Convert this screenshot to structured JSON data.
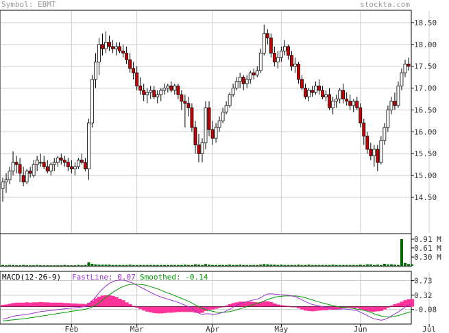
{
  "header": {
    "symbol": "Symbol: EBMT",
    "brand": "stockta.com"
  },
  "colors": {
    "up_candle_fill": "#ffffff",
    "down_candle_fill": "#cc0000",
    "volume": "#006600",
    "macd_histogram": "#ff3399",
    "fast_line": "#9933cc",
    "smooth_line": "#009900",
    "grid": "#cccccc",
    "axis_text": "#333333",
    "header_text": "#999999"
  },
  "chart_data": [
    {
      "type": "candlestick",
      "ylim": [
        13.7,
        18.75
      ],
      "y_ticks": [
        "18.50",
        "18.00",
        "17.50",
        "17.00",
        "16.50",
        "16.00",
        "15.50",
        "15.00",
        "14.50"
      ],
      "x_ticks": [
        "Feb",
        "Mar",
        "Apr",
        "May",
        "Jun",
        "Jul"
      ],
      "x_tick_bars": [
        20,
        39,
        61,
        81,
        104,
        124
      ],
      "grid": true,
      "ohlc": [
        [
          14.7,
          14.95,
          14.4,
          14.85
        ],
        [
          14.85,
          15.05,
          14.6,
          14.9
        ],
        [
          14.9,
          15.2,
          14.8,
          15.1
        ],
        [
          15.1,
          15.55,
          15.0,
          15.3
        ],
        [
          15.3,
          15.45,
          15.05,
          15.25
        ],
        [
          15.25,
          15.4,
          14.85,
          15.05
        ],
        [
          15.0,
          15.2,
          14.75,
          14.85
        ],
        [
          14.85,
          15.15,
          14.8,
          15.1
        ],
        [
          15.1,
          15.2,
          14.95,
          15.05
        ],
        [
          15.0,
          15.35,
          14.95,
          15.25
        ],
        [
          15.25,
          15.45,
          15.1,
          15.35
        ],
        [
          15.3,
          15.5,
          15.2,
          15.3
        ],
        [
          15.3,
          15.45,
          15.15,
          15.2
        ],
        [
          15.2,
          15.35,
          15.05,
          15.1
        ],
        [
          15.1,
          15.3,
          15.0,
          15.25
        ],
        [
          15.25,
          15.4,
          15.1,
          15.3
        ],
        [
          15.3,
          15.45,
          15.2,
          15.4
        ],
        [
          15.4,
          15.5,
          15.25,
          15.35
        ],
        [
          15.35,
          15.45,
          15.2,
          15.3
        ],
        [
          15.3,
          15.4,
          15.1,
          15.2
        ],
        [
          15.2,
          15.35,
          15.05,
          15.15
        ],
        [
          15.15,
          15.3,
          15.0,
          15.2
        ],
        [
          15.2,
          15.4,
          15.15,
          15.35
        ],
        [
          15.35,
          15.5,
          15.25,
          15.3
        ],
        [
          15.3,
          15.4,
          15.1,
          15.15
        ],
        [
          15.15,
          16.3,
          14.9,
          16.2
        ],
        [
          16.2,
          17.3,
          16.1,
          17.2
        ],
        [
          17.2,
          17.8,
          17.0,
          17.6
        ],
        [
          17.6,
          18.15,
          17.3,
          18.0
        ],
        [
          18.0,
          18.25,
          17.75,
          17.9
        ],
        [
          17.9,
          18.3,
          17.8,
          18.05
        ],
        [
          18.05,
          18.2,
          17.85,
          17.95
        ],
        [
          17.95,
          18.1,
          17.8,
          17.9
        ],
        [
          17.9,
          18.05,
          17.75,
          17.95
        ],
        [
          17.95,
          18.05,
          17.8,
          17.85
        ],
        [
          17.85,
          18.0,
          17.7,
          17.8
        ],
        [
          17.8,
          17.95,
          17.55,
          17.65
        ],
        [
          17.65,
          17.8,
          17.35,
          17.45
        ],
        [
          17.45,
          17.6,
          17.2,
          17.35
        ],
        [
          17.35,
          17.5,
          16.95,
          17.05
        ],
        [
          17.05,
          17.25,
          16.85,
          16.95
        ],
        [
          16.95,
          17.1,
          16.7,
          16.85
        ],
        [
          16.85,
          17.0,
          16.65,
          16.9
        ],
        [
          16.9,
          17.05,
          16.75,
          16.95
        ],
        [
          16.95,
          17.05,
          16.75,
          16.8
        ],
        [
          16.8,
          16.95,
          16.65,
          16.85
        ],
        [
          16.85,
          17.0,
          16.7,
          16.95
        ],
        [
          16.95,
          17.1,
          16.85,
          17.0
        ],
        [
          17.0,
          17.1,
          16.9,
          17.05
        ],
        [
          17.05,
          17.15,
          16.9,
          16.95
        ],
        [
          16.95,
          17.1,
          16.85,
          17.05
        ],
        [
          17.05,
          17.1,
          16.75,
          16.85
        ],
        [
          16.85,
          16.95,
          16.5,
          16.7
        ],
        [
          16.7,
          16.85,
          16.1,
          16.65
        ],
        [
          16.65,
          16.8,
          16.35,
          16.55
        ],
        [
          16.55,
          16.65,
          16.0,
          16.1
        ],
        [
          16.1,
          16.25,
          15.5,
          15.7
        ],
        [
          15.7,
          15.95,
          15.3,
          15.5
        ],
        [
          15.5,
          15.85,
          15.3,
          15.75
        ],
        [
          15.75,
          16.7,
          15.6,
          16.55
        ],
        [
          16.55,
          16.7,
          15.9,
          16.05
        ],
        [
          16.05,
          16.25,
          15.7,
          15.85
        ],
        [
          15.85,
          16.2,
          15.75,
          16.1
        ],
        [
          16.1,
          16.35,
          16.0,
          16.25
        ],
        [
          16.25,
          16.55,
          16.2,
          16.45
        ],
        [
          16.45,
          16.7,
          16.4,
          16.6
        ],
        [
          16.6,
          16.9,
          16.55,
          16.85
        ],
        [
          16.85,
          17.1,
          16.8,
          17.0
        ],
        [
          17.0,
          17.25,
          16.95,
          17.15
        ],
        [
          17.15,
          17.35,
          17.0,
          17.25
        ],
        [
          17.25,
          17.3,
          16.95,
          17.1
        ],
        [
          17.1,
          17.3,
          17.0,
          17.2
        ],
        [
          17.2,
          17.4,
          17.1,
          17.35
        ],
        [
          17.35,
          17.45,
          17.2,
          17.3
        ],
        [
          17.3,
          17.5,
          17.25,
          17.4
        ],
        [
          17.4,
          17.9,
          17.35,
          17.8
        ],
        [
          17.8,
          18.45,
          17.75,
          18.25
        ],
        [
          18.25,
          18.35,
          18.0,
          18.15
        ],
        [
          18.15,
          18.25,
          17.7,
          17.8
        ],
        [
          17.8,
          17.95,
          17.5,
          17.6
        ],
        [
          17.6,
          17.85,
          17.45,
          17.7
        ],
        [
          17.7,
          17.95,
          17.6,
          17.85
        ],
        [
          17.85,
          18.1,
          17.75,
          17.95
        ],
        [
          17.95,
          18.0,
          17.65,
          17.75
        ],
        [
          17.75,
          17.85,
          17.4,
          17.5
        ],
        [
          17.5,
          17.7,
          17.35,
          17.55
        ],
        [
          17.55,
          17.6,
          17.1,
          17.2
        ],
        [
          17.2,
          17.3,
          16.95,
          17.0
        ],
        [
          17.0,
          17.1,
          16.75,
          16.8
        ],
        [
          16.8,
          17.0,
          16.7,
          16.95
        ],
        [
          16.95,
          17.05,
          16.8,
          16.9
        ],
        [
          16.9,
          17.15,
          16.85,
          17.05
        ],
        [
          17.05,
          17.2,
          16.85,
          16.95
        ],
        [
          16.95,
          17.05,
          16.75,
          16.8
        ],
        [
          16.8,
          16.95,
          16.7,
          16.85
        ],
        [
          16.85,
          17.0,
          16.5,
          16.55
        ],
        [
          16.55,
          16.8,
          16.4,
          16.7
        ],
        [
          16.7,
          16.85,
          16.55,
          16.75
        ],
        [
          16.75,
          17.0,
          16.65,
          16.95
        ],
        [
          16.95,
          17.1,
          16.65,
          16.75
        ],
        [
          16.75,
          16.9,
          16.6,
          16.7
        ],
        [
          16.7,
          16.85,
          16.5,
          16.6
        ],
        [
          16.6,
          16.75,
          16.45,
          16.7
        ],
        [
          16.7,
          16.8,
          16.5,
          16.55
        ],
        [
          16.55,
          16.65,
          16.1,
          16.2
        ],
        [
          16.2,
          16.3,
          15.7,
          15.9
        ],
        [
          15.9,
          16.0,
          15.5,
          15.6
        ],
        [
          15.6,
          15.75,
          15.35,
          15.45
        ],
        [
          15.45,
          15.7,
          15.2,
          15.6
        ],
        [
          15.6,
          15.7,
          15.1,
          15.3
        ],
        [
          15.3,
          15.9,
          15.25,
          15.8
        ],
        [
          15.8,
          16.2,
          15.7,
          16.1
        ],
        [
          16.1,
          16.6,
          16.0,
          16.5
        ],
        [
          16.5,
          16.8,
          16.4,
          16.7
        ],
        [
          16.7,
          16.9,
          16.5,
          16.6
        ],
        [
          16.6,
          17.15,
          16.55,
          17.05
        ],
        [
          17.05,
          17.45,
          16.95,
          17.35
        ],
        [
          17.35,
          17.65,
          17.25,
          17.55
        ],
        [
          17.55,
          17.7,
          17.4,
          17.5
        ]
      ]
    },
    {
      "type": "bar",
      "name": "volume",
      "y_ticks": [
        "0.91 M",
        "0.61 M",
        "0.30 M"
      ],
      "ylim": [
        0,
        1.05
      ],
      "values": [
        0.03,
        0.02,
        0.03,
        0.03,
        0.02,
        0.02,
        0.03,
        0.02,
        0.02,
        0.02,
        0.03,
        0.02,
        0.02,
        0.02,
        0.02,
        0.02,
        0.02,
        0.02,
        0.03,
        0.02,
        0.02,
        0.02,
        0.03,
        0.02,
        0.03,
        0.12,
        0.07,
        0.05,
        0.04,
        0.04,
        0.04,
        0.04,
        0.03,
        0.03,
        0.03,
        0.03,
        0.03,
        0.04,
        0.03,
        0.03,
        0.03,
        0.03,
        0.03,
        0.03,
        0.03,
        0.03,
        0.03,
        0.03,
        0.03,
        0.03,
        0.03,
        0.03,
        0.03,
        0.04,
        0.03,
        0.03,
        0.05,
        0.04,
        0.03,
        0.06,
        0.04,
        0.03,
        0.03,
        0.03,
        0.03,
        0.03,
        0.04,
        0.03,
        0.03,
        0.04,
        0.03,
        0.03,
        0.03,
        0.03,
        0.03,
        0.04,
        0.06,
        0.05,
        0.04,
        0.04,
        0.03,
        0.04,
        0.03,
        0.03,
        0.03,
        0.03,
        0.04,
        0.03,
        0.03,
        0.04,
        0.03,
        0.03,
        0.03,
        0.03,
        0.03,
        0.03,
        0.04,
        0.03,
        0.03,
        0.03,
        0.03,
        0.03,
        0.03,
        0.03,
        0.04,
        0.03,
        0.05,
        0.05,
        0.03,
        0.04,
        0.03,
        0.07,
        0.05,
        0.05,
        0.04,
        0.03,
        0.91,
        0.1,
        0.06,
        0.05
      ]
    },
    {
      "type": "line",
      "name": "macd",
      "title": "MACD(12-26-9)",
      "fast_label": "FastLine: 0.07",
      "smooth_label": "Smoothed: -0.14",
      "y_ticks": [
        "0.73",
        "0.32",
        "-0.08"
      ],
      "ylim": [
        -0.45,
        0.95
      ],
      "series": [
        {
          "name": "FastLine",
          "values": [
            -0.35,
            -0.33,
            -0.3,
            -0.27,
            -0.25,
            -0.24,
            -0.23,
            -0.21,
            -0.2,
            -0.18,
            -0.16,
            -0.14,
            -0.13,
            -0.12,
            -0.11,
            -0.1,
            -0.08,
            -0.07,
            -0.06,
            -0.05,
            -0.04,
            -0.03,
            -0.02,
            -0.01,
            0.0,
            0.06,
            0.16,
            0.27,
            0.39,
            0.49,
            0.58,
            0.65,
            0.7,
            0.73,
            0.74,
            0.74,
            0.72,
            0.69,
            0.65,
            0.6,
            0.55,
            0.5,
            0.45,
            0.4,
            0.35,
            0.31,
            0.27,
            0.24,
            0.21,
            0.18,
            0.15,
            0.12,
            0.08,
            0.04,
            0.0,
            -0.05,
            -0.12,
            -0.18,
            -0.22,
            -0.2,
            -0.2,
            -0.21,
            -0.21,
            -0.19,
            -0.16,
            -0.12,
            -0.07,
            -0.02,
            0.03,
            0.08,
            0.11,
            0.14,
            0.17,
            0.19,
            0.21,
            0.25,
            0.31,
            0.35,
            0.36,
            0.35,
            0.34,
            0.33,
            0.33,
            0.32,
            0.3,
            0.28,
            0.24,
            0.19,
            0.14,
            0.1,
            0.06,
            0.04,
            0.02,
            0.0,
            -0.02,
            -0.03,
            -0.06,
            -0.07,
            -0.07,
            -0.06,
            -0.07,
            -0.08,
            -0.1,
            -0.11,
            -0.15,
            -0.2,
            -0.25,
            -0.3,
            -0.34,
            -0.36,
            -0.38,
            -0.36,
            -0.32,
            -0.26,
            -0.2,
            -0.15,
            -0.08,
            -0.01,
            0.05,
            0.07
          ]
        },
        {
          "name": "Smoothed",
          "values": [
            -0.4,
            -0.39,
            -0.38,
            -0.37,
            -0.36,
            -0.35,
            -0.34,
            -0.33,
            -0.31,
            -0.3,
            -0.28,
            -0.27,
            -0.25,
            -0.24,
            -0.22,
            -0.21,
            -0.19,
            -0.18,
            -0.16,
            -0.15,
            -0.13,
            -0.12,
            -0.1,
            -0.09,
            -0.07,
            -0.05,
            -0.01,
            0.04,
            0.11,
            0.18,
            0.26,
            0.33,
            0.4,
            0.46,
            0.52,
            0.56,
            0.6,
            0.62,
            0.63,
            0.63,
            0.62,
            0.61,
            0.59,
            0.56,
            0.53,
            0.5,
            0.46,
            0.42,
            0.38,
            0.35,
            0.31,
            0.27,
            0.23,
            0.19,
            0.15,
            0.1,
            0.05,
            0.0,
            -0.05,
            -0.08,
            -0.11,
            -0.13,
            -0.15,
            -0.16,
            -0.16,
            -0.15,
            -0.14,
            -0.12,
            -0.09,
            -0.06,
            -0.03,
            0.0,
            0.03,
            0.06,
            0.09,
            0.12,
            0.16,
            0.2,
            0.23,
            0.26,
            0.28,
            0.29,
            0.3,
            0.3,
            0.3,
            0.3,
            0.29,
            0.27,
            0.25,
            0.22,
            0.19,
            0.16,
            0.13,
            0.1,
            0.08,
            0.05,
            0.03,
            0.01,
            -0.01,
            -0.02,
            -0.03,
            -0.04,
            -0.05,
            -0.07,
            -0.08,
            -0.1,
            -0.13,
            -0.16,
            -0.2,
            -0.23,
            -0.26,
            -0.28,
            -0.29,
            -0.29,
            -0.27,
            -0.25,
            -0.22,
            -0.19,
            -0.16,
            -0.14
          ]
        }
      ],
      "histogram": "FastLine - Smoothed"
    }
  ]
}
